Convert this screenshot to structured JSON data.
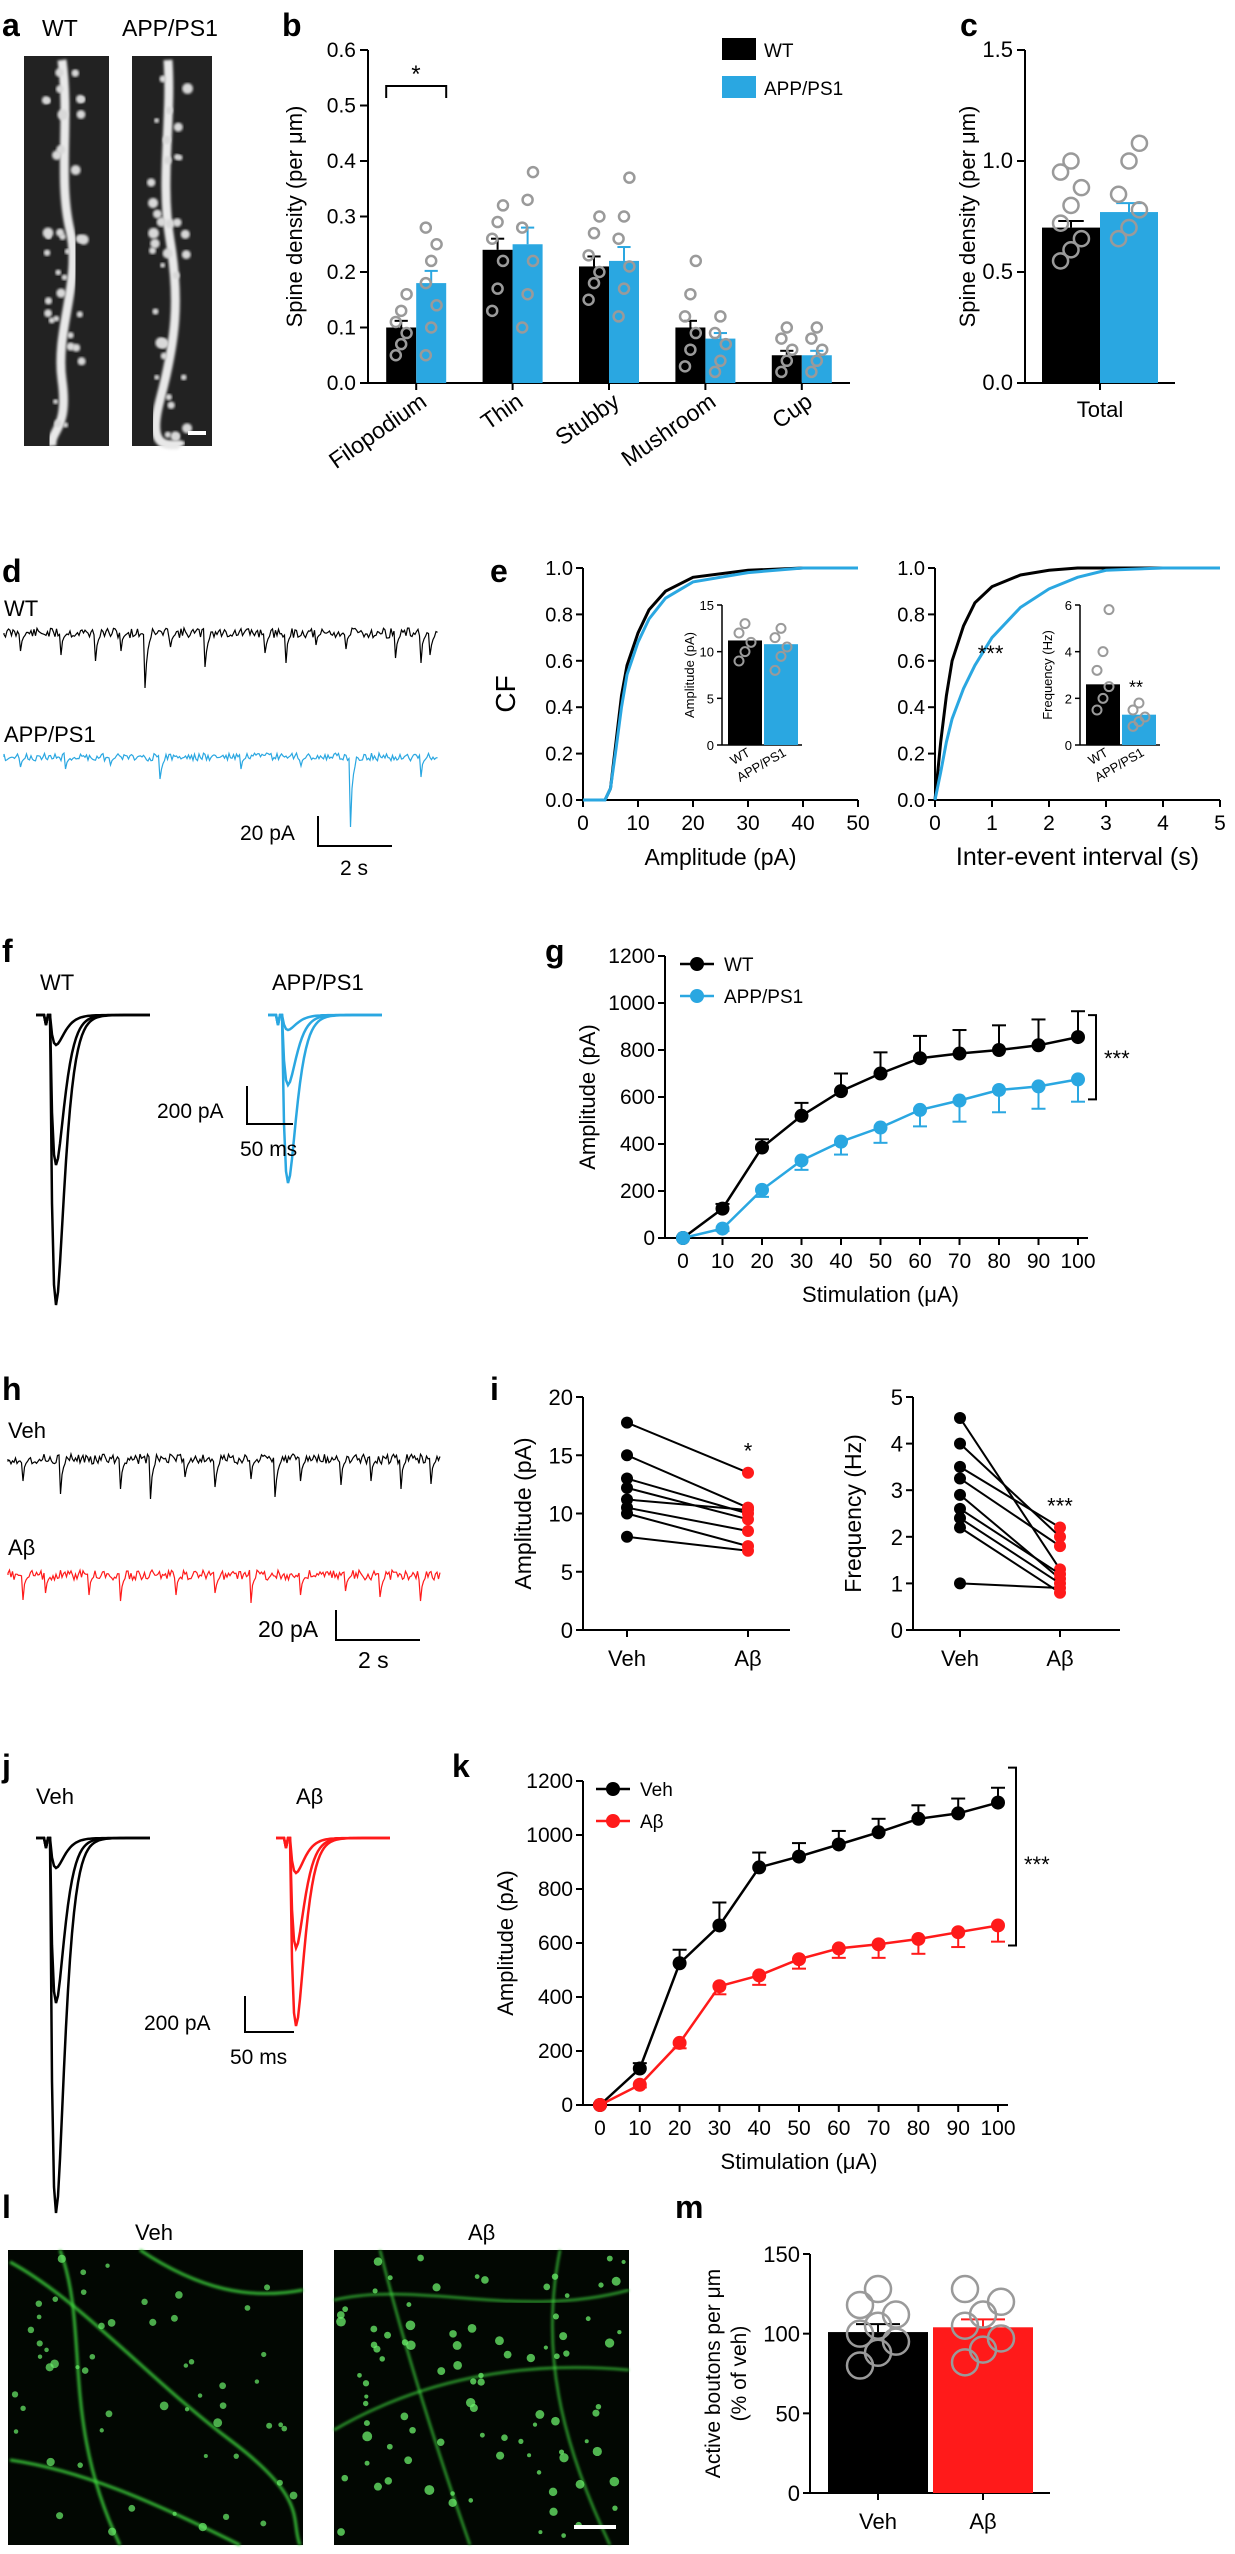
{
  "colors": {
    "wt": "#000000",
    "app": "#2aa7e1",
    "ab": "#ff1a1a",
    "grey": "#9a9a9a",
    "micro": "#3cd23c"
  },
  "panel_labels": {
    "a": "a",
    "b": "b",
    "c": "c",
    "d": "d",
    "e": "e",
    "f": "f",
    "g": "g",
    "h": "h",
    "i": "i",
    "j": "j",
    "k": "k",
    "l": "l",
    "m": "m"
  },
  "images": {
    "a_wt": "WT",
    "a_app": "APP/PS1",
    "l_veh": "Veh",
    "l_ab": "Aβ"
  },
  "traces": {
    "d_wt": "WT",
    "d_app": "APP/PS1",
    "d_scale_y": "20 pA",
    "d_scale_x": "2 s",
    "f_wt": "WT",
    "f_app": "APP/PS1",
    "f_scale_y": "200 pA",
    "f_scale_x": "50 ms",
    "h_veh": "Veh",
    "h_ab": "Aβ",
    "h_scale_y": "20 pA",
    "h_scale_x": "2 s",
    "j_veh": "Veh",
    "j_ab": "Aβ",
    "j_scale_y": "200 pA",
    "j_scale_x": "50 ms"
  },
  "chart_data": [
    {
      "id": "b",
      "type": "bar",
      "categories": [
        "Filopodium",
        "Thin",
        "Stubby",
        "Mushroom",
        "Cup"
      ],
      "series": [
        {
          "name": "WT",
          "values": [
            0.1,
            0.24,
            0.21,
            0.1,
            0.05
          ],
          "sem": [
            0.012,
            0.02,
            0.018,
            0.012,
            0.008
          ],
          "points": [
            [
              0.05,
              0.07,
              0.09,
              0.11,
              0.13,
              0.16
            ],
            [
              0.13,
              0.17,
              0.22,
              0.26,
              0.29,
              0.32
            ],
            [
              0.15,
              0.18,
              0.2,
              0.23,
              0.27,
              0.3
            ],
            [
              0.03,
              0.06,
              0.09,
              0.12,
              0.16,
              0.22
            ],
            [
              0.02,
              0.04,
              0.06,
              0.08,
              0.1
            ]
          ]
        },
        {
          "name": "APP/PS1",
          "values": [
            0.18,
            0.25,
            0.22,
            0.08,
            0.05
          ],
          "sem": [
            0.022,
            0.03,
            0.025,
            0.01,
            0.008
          ],
          "points": [
            [
              0.05,
              0.1,
              0.14,
              0.18,
              0.22,
              0.25,
              0.28
            ],
            [
              0.1,
              0.16,
              0.22,
              0.28,
              0.33,
              0.38
            ],
            [
              0.12,
              0.17,
              0.21,
              0.26,
              0.3,
              0.37
            ],
            [
              0.02,
              0.04,
              0.07,
              0.09,
              0.12
            ],
            [
              0.02,
              0.04,
              0.06,
              0.08,
              0.1
            ]
          ]
        }
      ],
      "ylabel": "Spine density (per μm)",
      "ylim": [
        0,
        0.6
      ],
      "yticks": [
        "0.0",
        "0.1",
        "0.2",
        "0.3",
        "0.4",
        "0.5",
        "0.6"
      ],
      "legend": [
        "WT",
        "APP/PS1"
      ],
      "annotation": "*"
    },
    {
      "id": "c",
      "type": "bar",
      "categories": [
        "Total"
      ],
      "series": [
        {
          "name": "WT",
          "values": [
            0.7
          ],
          "sem": [
            0.03
          ],
          "points": [
            [
              0.55,
              0.6,
              0.65,
              0.72,
              0.8,
              0.88,
              0.95,
              1.0
            ]
          ]
        },
        {
          "name": "APP/PS1",
          "values": [
            0.77
          ],
          "sem": [
            0.04
          ],
          "points": [
            [
              0.65,
              0.7,
              0.78,
              0.85,
              1.0,
              1.08
            ]
          ]
        }
      ],
      "ylabel": "Spine density (per μm)",
      "ylim": [
        0,
        1.5
      ],
      "yticks": [
        "0.0",
        "0.5",
        "1.0",
        "1.5"
      ]
    },
    {
      "id": "e1",
      "type": "line",
      "series": [
        {
          "name": "WT",
          "x": [
            0,
            4,
            5,
            6,
            7,
            8,
            10,
            12,
            15,
            20,
            30,
            40,
            50
          ],
          "y": [
            0,
            0,
            0.05,
            0.25,
            0.45,
            0.58,
            0.72,
            0.82,
            0.9,
            0.96,
            0.99,
            1.0,
            1.0
          ]
        },
        {
          "name": "APP/PS1",
          "x": [
            0,
            4,
            5,
            6,
            7,
            8,
            10,
            12,
            15,
            20,
            30,
            40,
            50
          ],
          "y": [
            0,
            0,
            0.05,
            0.22,
            0.4,
            0.54,
            0.68,
            0.78,
            0.87,
            0.94,
            0.98,
            1.0,
            1.0
          ]
        }
      ],
      "xlabel": "Amplitude (pA)",
      "ylabel": "CF",
      "xlim": [
        0,
        50
      ],
      "ylim": [
        0,
        1
      ],
      "xticks": [
        "0",
        "10",
        "20",
        "30",
        "40",
        "50"
      ],
      "yticks": [
        "0.0",
        "0.2",
        "0.4",
        "0.6",
        "0.8",
        "1.0"
      ],
      "inset": {
        "type": "bar",
        "categories": [
          "WT",
          "APP/PS1"
        ],
        "values": [
          11.2,
          10.8
        ],
        "ylabel": "Amplitude (pA)",
        "ylim": [
          0,
          15
        ],
        "yticks": [
          "0",
          "5",
          "10",
          "15"
        ],
        "points": [
          [
            9,
            10,
            11,
            12,
            13
          ],
          [
            8,
            9.5,
            10.5,
            11.5,
            12.5
          ]
        ]
      }
    },
    {
      "id": "e2",
      "type": "line",
      "series": [
        {
          "name": "WT",
          "x": [
            0,
            0.1,
            0.2,
            0.3,
            0.5,
            0.7,
            1.0,
            1.5,
            2.0,
            2.5,
            3.0,
            4.0,
            5.0
          ],
          "y": [
            0,
            0.25,
            0.45,
            0.6,
            0.75,
            0.85,
            0.92,
            0.97,
            0.99,
            1.0,
            1.0,
            1.0,
            1.0
          ]
        },
        {
          "name": "APP/PS1",
          "x": [
            0,
            0.1,
            0.2,
            0.3,
            0.5,
            0.7,
            1.0,
            1.5,
            2.0,
            2.5,
            3.0,
            4.0,
            5.0
          ],
          "y": [
            0,
            0.12,
            0.25,
            0.35,
            0.48,
            0.58,
            0.7,
            0.83,
            0.91,
            0.96,
            0.99,
            1.0,
            1.0
          ]
        }
      ],
      "xlabel": "Inter-event interval (s)",
      "xlim": [
        0,
        5
      ],
      "ylim": [
        0,
        1
      ],
      "xticks": [
        "0",
        "1",
        "2",
        "3",
        "4",
        "5"
      ],
      "yticks": [
        "0.0",
        "0.2",
        "0.4",
        "0.6",
        "0.8",
        "1.0"
      ],
      "annotation": "***",
      "inset": {
        "type": "bar",
        "categories": [
          "WT",
          "APP/PS1"
        ],
        "values": [
          2.6,
          1.3
        ],
        "ylabel": "Frequency (Hz)",
        "ylim": [
          0,
          6
        ],
        "yticks": [
          "0",
          "2",
          "4",
          "6"
        ],
        "annotation": "**",
        "points": [
          [
            1.5,
            2.0,
            2.5,
            3.2,
            4.0,
            5.8
          ],
          [
            0.8,
            1.0,
            1.2,
            1.5,
            1.8
          ]
        ]
      }
    },
    {
      "id": "g",
      "type": "line",
      "x": [
        0,
        10,
        20,
        30,
        40,
        50,
        60,
        70,
        80,
        90,
        100
      ],
      "series": [
        {
          "name": "WT",
          "y": [
            0,
            125,
            385,
            520,
            625,
            700,
            765,
            785,
            800,
            820,
            855
          ],
          "sem": [
            5,
            20,
            35,
            55,
            75,
            90,
            95,
            100,
            105,
            110,
            110
          ]
        },
        {
          "name": "APP/PS1",
          "y": [
            0,
            40,
            205,
            330,
            410,
            470,
            545,
            585,
            630,
            645,
            675
          ],
          "sem": [
            5,
            10,
            30,
            40,
            55,
            65,
            70,
            90,
            95,
            95,
            95
          ]
        }
      ],
      "xlabel": "Stimulation (μA)",
      "ylabel": "Amplitude (pA)",
      "xlim": [
        0,
        100
      ],
      "ylim": [
        0,
        1200
      ],
      "xticks": [
        "0",
        "10",
        "20",
        "30",
        "40",
        "50",
        "60",
        "70",
        "80",
        "90",
        "100"
      ],
      "yticks": [
        "0",
        "200",
        "400",
        "600",
        "800",
        "1000",
        "1200"
      ],
      "legend": [
        "WT",
        "APP/PS1"
      ],
      "annotation": "***"
    },
    {
      "id": "i1",
      "type": "paired",
      "categories": [
        "Veh",
        "Aβ"
      ],
      "pairs": [
        [
          17.8,
          13.5
        ],
        [
          15,
          10.5
        ],
        [
          13,
          10
        ],
        [
          12.2,
          9.5
        ],
        [
          11.2,
          10.3
        ],
        [
          10.5,
          8.5
        ],
        [
          10,
          7.2
        ],
        [
          8,
          6.8
        ]
      ],
      "ylabel": "Amplitude (pA)",
      "ylim": [
        0,
        20
      ],
      "yticks": [
        "0",
        "5",
        "10",
        "15",
        "20"
      ],
      "annotation": "*"
    },
    {
      "id": "i2",
      "type": "paired",
      "categories": [
        "Veh",
        "Aβ"
      ],
      "pairs": [
        [
          4.55,
          1.3
        ],
        [
          4.0,
          2.0
        ],
        [
          3.5,
          2.2
        ],
        [
          3.25,
          1.8
        ],
        [
          2.9,
          1.1
        ],
        [
          2.6,
          1.2
        ],
        [
          2.4,
          1.0
        ],
        [
          2.2,
          0.8
        ],
        [
          1.0,
          0.9
        ]
      ],
      "ylabel": "Frequency (Hz)",
      "ylim": [
        0,
        5
      ],
      "yticks": [
        "0",
        "1",
        "2",
        "3",
        "4",
        "5"
      ],
      "annotation": "***"
    },
    {
      "id": "k",
      "type": "line",
      "x": [
        0,
        10,
        20,
        30,
        40,
        50,
        60,
        70,
        80,
        90,
        100
      ],
      "series": [
        {
          "name": "Veh",
          "y": [
            0,
            135,
            525,
            665,
            880,
            920,
            965,
            1010,
            1060,
            1080,
            1120
          ],
          "sem": [
            5,
            20,
            50,
            85,
            55,
            50,
            50,
            50,
            50,
            55,
            55
          ]
        },
        {
          "name": "Aβ",
          "y": [
            0,
            75,
            230,
            440,
            480,
            540,
            580,
            595,
            615,
            640,
            665
          ],
          "sem": [
            5,
            10,
            20,
            30,
            35,
            35,
            35,
            50,
            55,
            55,
            60
          ]
        }
      ],
      "xlabel": "Stimulation (μA)",
      "ylabel": "Amplitude (pA)",
      "xlim": [
        0,
        100
      ],
      "ylim": [
        0,
        1200
      ],
      "xticks": [
        "0",
        "10",
        "20",
        "30",
        "40",
        "50",
        "60",
        "70",
        "80",
        "90",
        "100"
      ],
      "yticks": [
        "0",
        "200",
        "400",
        "600",
        "800",
        "1000",
        "1200"
      ],
      "legend": [
        "Veh",
        "Aβ"
      ],
      "annotation": "***"
    },
    {
      "id": "m",
      "type": "bar",
      "categories": [
        "Veh",
        "Aβ"
      ],
      "values": [
        101,
        104
      ],
      "sem": [
        5,
        5
      ],
      "points": [
        [
          80,
          88,
          95,
          100,
          105,
          112,
          118,
          128
        ],
        [
          82,
          90,
          97,
          105,
          112,
          120,
          128
        ]
      ],
      "ylabel": "Active boutons per μm (% of veh)",
      "ylim": [
        0,
        150
      ],
      "yticks": [
        "0",
        "50",
        "100",
        "150"
      ]
    }
  ]
}
